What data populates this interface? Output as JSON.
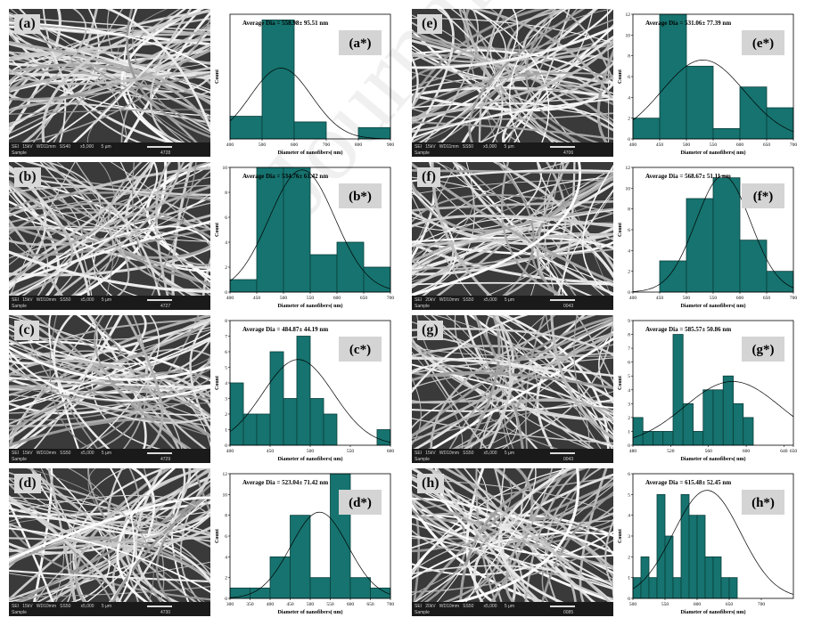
{
  "panels": [
    {
      "id": "a",
      "label": "(a)",
      "sem_info": "SEI   15kV   WD11mm   SS40        x5,000      5 µm",
      "sem_sample": "Sample",
      "sem_num": "4728"
    },
    {
      "id": "b",
      "label": "(b)",
      "sem_info": "SEI   15kV   WD10mm   SS50        x5,000      5 µm",
      "sem_sample": "Sample",
      "sem_num": "4727"
    },
    {
      "id": "c",
      "label": "(c)",
      "sem_info": "SEI   15kV   WD10mm   SS50        x5,000      5 µm",
      "sem_sample": "Sample",
      "sem_num": "4729"
    },
    {
      "id": "d",
      "label": "(d)",
      "sem_info": "SEI   15kV   WD10mm   SS50        x5,000      5 µm",
      "sem_sample": "Sample",
      "sem_num": "4730"
    },
    {
      "id": "e",
      "label": "(e)",
      "sem_info": "SEI   15kV   WD11mm   SS50        x5,000      5 µm",
      "sem_sample": "Sample",
      "sem_num": "4706"
    },
    {
      "id": "f",
      "label": "(f)",
      "sem_info": "SEI   20kV   WD10mm   SS50        x5,000      5 µm",
      "sem_sample": "Sample",
      "sem_num": "0043"
    },
    {
      "id": "g",
      "label": "(g)",
      "sem_info": "SEI   15kV   WD10mm   SS50        x5,000      5 µm",
      "sem_sample": "Sample",
      "sem_num": "0043"
    },
    {
      "id": "h",
      "label": "(h)",
      "sem_info": "SEI   20kV   WD10mm   SS50        x5,000      5 µm",
      "sem_sample": "Sample",
      "sem_num": "0085"
    }
  ],
  "colors": {
    "bar_fill": "#16736f",
    "bar_stroke": "#0b3e3b",
    "tag_bg": "#d4d4d4",
    "sem_bg": "#3a3a3a",
    "fiber": "#e6e6e6"
  },
  "watermark": "Journal Pre-proof",
  "chart_data": [
    {
      "id": "a*",
      "type": "bar",
      "label": "(a*)",
      "annotation": "Average Dia = 558.98± 95.51 nm",
      "xlabel": "Diameter of nanofibers( nm)",
      "ylabel": "Count",
      "xlim": [
        400,
        900
      ],
      "ylim": [
        0,
        22
      ],
      "xticks": [
        400,
        500,
        600,
        700,
        800,
        900
      ],
      "yticks": [],
      "bins": [
        [
          400,
          500,
          4
        ],
        [
          500,
          600,
          21
        ],
        [
          600,
          700,
          3
        ],
        [
          800,
          900,
          2
        ]
      ],
      "fit": {
        "mean": 558.98,
        "sd": 95.51,
        "peak": 12.5
      }
    },
    {
      "id": "b*",
      "type": "bar",
      "label": "(b*)",
      "annotation": "Average Dia = 534.76± 61.42 nm",
      "xlabel": "Diameter of nanofibers( nm)",
      "ylabel": "Count",
      "xlim": [
        400,
        700
      ],
      "ylim": [
        0,
        10
      ],
      "xticks": [
        400,
        450,
        500,
        550,
        600,
        650,
        700
      ],
      "yticks": [
        0,
        2,
        4,
        6,
        8,
        10
      ],
      "bins": [
        [
          400,
          450,
          1
        ],
        [
          450,
          500,
          10
        ],
        [
          500,
          550,
          10
        ],
        [
          550,
          600,
          3
        ],
        [
          600,
          650,
          4
        ],
        [
          650,
          700,
          2
        ]
      ],
      "fit": {
        "mean": 534.76,
        "sd": 61.42,
        "peak": 9.8
      }
    },
    {
      "id": "c*",
      "type": "bar",
      "label": "(c*)",
      "annotation": "Average Dia = 484.87± 44.19 nm",
      "xlabel": "Diameter of nanofibers( nm)",
      "ylabel": "Count",
      "xlim": [
        400,
        600
      ],
      "ylim": [
        0,
        8
      ],
      "xticks": [
        400,
        450,
        500,
        550,
        600
      ],
      "yticks": [
        0,
        1,
        2,
        3,
        4,
        5,
        6,
        7,
        8
      ],
      "bins": [
        [
          400,
          416.7,
          4
        ],
        [
          416.7,
          433.3,
          2
        ],
        [
          433.3,
          450,
          2
        ],
        [
          450,
          466.7,
          6
        ],
        [
          466.7,
          483.3,
          3
        ],
        [
          483.3,
          500,
          7
        ],
        [
          500,
          516.7,
          3
        ],
        [
          516.7,
          533.3,
          2
        ],
        [
          583.3,
          600,
          1
        ]
      ],
      "fit": {
        "mean": 484.87,
        "sd": 44.19,
        "peak": 5.5
      }
    },
    {
      "id": "d*",
      "type": "bar",
      "label": "(d*)",
      "annotation": "Average Dia = 523.04± 71.42 nm",
      "xlabel": "Diameter of nanofibers( nm)",
      "ylabel": "Count",
      "xlim": [
        300,
        700
      ],
      "ylim": [
        0,
        12
      ],
      "xticks": [
        300,
        350,
        400,
        450,
        500,
        550,
        600,
        650,
        700
      ],
      "yticks": [
        0,
        2,
        4,
        6,
        8,
        10,
        12
      ],
      "bins": [
        [
          300,
          350,
          1
        ],
        [
          350,
          400,
          1
        ],
        [
          400,
          450,
          4
        ],
        [
          450,
          500,
          8
        ],
        [
          500,
          550,
          2
        ],
        [
          550,
          600,
          12
        ],
        [
          600,
          650,
          2
        ],
        [
          650,
          700,
          1
        ]
      ],
      "fit": {
        "mean": 523.04,
        "sd": 71.42,
        "peak": 8.3
      }
    },
    {
      "id": "e*",
      "type": "bar",
      "label": "(e*)",
      "annotation": "Average Dia = 531.06± 77.39 nm",
      "xlabel": "Diameter of nanofibers( nm)",
      "ylabel": "Count",
      "xlim": [
        400,
        700
      ],
      "ylim": [
        0,
        12
      ],
      "xticks": [
        400,
        450,
        500,
        550,
        600,
        650,
        700
      ],
      "yticks": [
        0,
        2,
        4,
        6,
        8,
        10,
        12
      ],
      "bins": [
        [
          400,
          450,
          2
        ],
        [
          450,
          500,
          12
        ],
        [
          500,
          550,
          7
        ],
        [
          550,
          600,
          1
        ],
        [
          600,
          650,
          5
        ],
        [
          650,
          700,
          3
        ]
      ],
      "fit": {
        "mean": 531.06,
        "sd": 77.39,
        "peak": 7.6
      }
    },
    {
      "id": "f*",
      "type": "bar",
      "label": "(f*)",
      "annotation": "Average Dia = 568.67± 51.11 nm",
      "xlabel": "Diameter of nanofibers( nm)",
      "ylabel": "Count",
      "xlim": [
        400,
        700
      ],
      "ylim": [
        0,
        12
      ],
      "xticks": [
        400,
        450,
        500,
        550,
        600,
        650,
        700
      ],
      "yticks": [
        0,
        2,
        4,
        6,
        8,
        10,
        12
      ],
      "bins": [
        [
          450,
          500,
          3
        ],
        [
          500,
          550,
          9
        ],
        [
          550,
          600,
          11
        ],
        [
          600,
          650,
          5
        ],
        [
          650,
          700,
          2
        ]
      ],
      "fit": {
        "mean": 568.67,
        "sd": 51.11,
        "peak": 11.2
      }
    },
    {
      "id": "g*",
      "type": "bar",
      "label": "(g*)",
      "annotation": "Average Dia = 585.57± 50.86 nm",
      "xlabel": "Diameter of nanofibers( nm)",
      "ylabel": "Count",
      "xlim": [
        480,
        650
      ],
      "ylim": [
        0,
        9
      ],
      "xticks": [
        480,
        520,
        560,
        600,
        640,
        650
      ],
      "yticks": [
        0,
        1,
        2,
        3,
        4,
        5,
        6,
        7,
        8,
        9
      ],
      "bins": [
        [
          480,
          490.6,
          2
        ],
        [
          490.6,
          501.3,
          1
        ],
        [
          501.3,
          511.9,
          1
        ],
        [
          511.9,
          522.5,
          1
        ],
        [
          522.5,
          533.1,
          8
        ],
        [
          533.1,
          543.8,
          3
        ],
        [
          543.8,
          554.4,
          1
        ],
        [
          554.4,
          565,
          4
        ],
        [
          565,
          575.6,
          4
        ],
        [
          575.6,
          586.3,
          5
        ],
        [
          586.3,
          596.9,
          3
        ],
        [
          596.9,
          607.5,
          2
        ]
      ],
      "fit": {
        "mean": 585.57,
        "sd": 50.86,
        "peak": 4.6
      }
    },
    {
      "id": "h*",
      "type": "bar",
      "label": "(h*)",
      "annotation": "Average Dia = 615.48± 52.45 nm",
      "xlabel": "Diameter of nanofibers( nm)",
      "ylabel": "Count",
      "xlim": [
        500,
        750
      ],
      "ylim": [
        0,
        6
      ],
      "xticks": [
        500,
        550,
        600,
        650,
        700
      ],
      "yticks": [
        0,
        1,
        2,
        3,
        4,
        5,
        6
      ],
      "bins": [
        [
          500,
          512.5,
          1
        ],
        [
          512.5,
          525,
          2
        ],
        [
          525,
          537.5,
          1
        ],
        [
          537.5,
          550,
          5
        ],
        [
          550,
          562.5,
          3
        ],
        [
          562.5,
          575,
          1
        ],
        [
          575,
          587.5,
          5
        ],
        [
          587.5,
          600,
          4
        ],
        [
          600,
          612.5,
          4
        ],
        [
          612.5,
          625,
          2
        ],
        [
          625,
          637.5,
          2
        ],
        [
          637.5,
          650,
          1
        ],
        [
          650,
          662.5,
          1
        ]
      ],
      "fit": {
        "mean": 615.48,
        "sd": 52.45,
        "peak": 5.2
      }
    }
  ]
}
